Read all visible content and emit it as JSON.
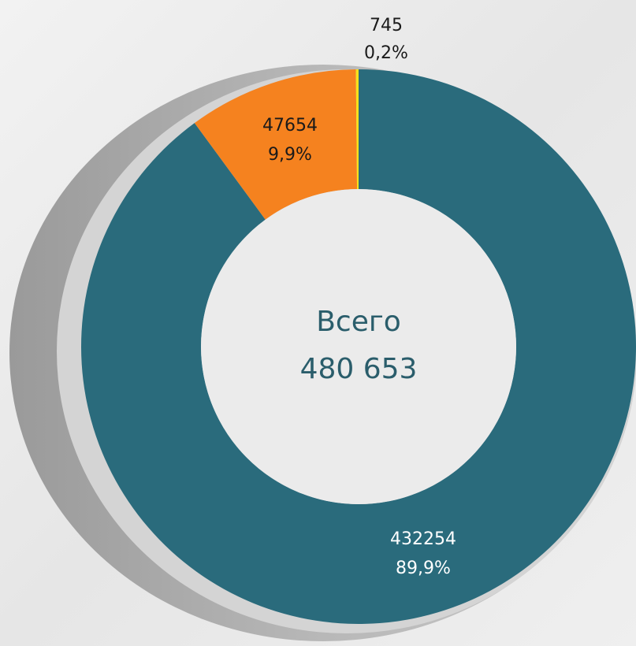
{
  "chart_data": {
    "type": "donut",
    "categories": [
      null,
      null,
      null
    ],
    "values": [
      432254,
      47654,
      745
    ],
    "percents": [
      {
        "value": 89.9,
        "label": "89,9%"
      },
      {
        "value": 9.9,
        "label": "9,9%"
      },
      {
        "value": 0.2,
        "label": "0,2%"
      }
    ],
    "colors": [
      "#2a6b7c",
      "#f5821f",
      "#f5e11b"
    ],
    "label_colors": [
      "#ffffff",
      "#1a1a1a",
      "#1a1a1a"
    ],
    "center_label": "Всего",
    "total": {
      "value": 480653,
      "label": "480 653"
    }
  }
}
